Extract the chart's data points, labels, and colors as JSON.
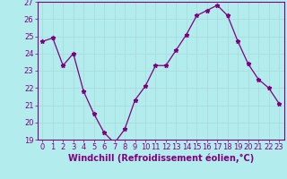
{
  "x": [
    0,
    1,
    2,
    3,
    4,
    5,
    6,
    7,
    8,
    9,
    10,
    11,
    12,
    13,
    14,
    15,
    16,
    17,
    18,
    19,
    20,
    21,
    22,
    23
  ],
  "y": [
    24.7,
    24.9,
    23.3,
    24.0,
    21.8,
    20.5,
    19.4,
    18.8,
    19.6,
    21.3,
    22.1,
    23.3,
    23.3,
    24.2,
    25.1,
    26.2,
    26.5,
    26.8,
    26.2,
    24.7,
    23.4,
    22.5,
    22.0,
    21.1
  ],
  "line_color": "#800080",
  "marker": "*",
  "marker_size": 3.5,
  "background_color": "#b3ecec",
  "grid_color": "#aadddd",
  "xlabel": "Windchill (Refroidissement éolien,°C)",
  "ylim": [
    19,
    27
  ],
  "xlim": [
    -0.5,
    23.5
  ],
  "yticks": [
    19,
    20,
    21,
    22,
    23,
    24,
    25,
    26,
    27
  ],
  "xticks": [
    0,
    1,
    2,
    3,
    4,
    5,
    6,
    7,
    8,
    9,
    10,
    11,
    12,
    13,
    14,
    15,
    16,
    17,
    18,
    19,
    20,
    21,
    22,
    23
  ],
  "xlabel_fontsize": 7,
  "tick_fontsize": 6,
  "tick_color": "#800080",
  "label_color": "#800080",
  "spine_color": "#800080",
  "axis_bg": "#b3ecec"
}
